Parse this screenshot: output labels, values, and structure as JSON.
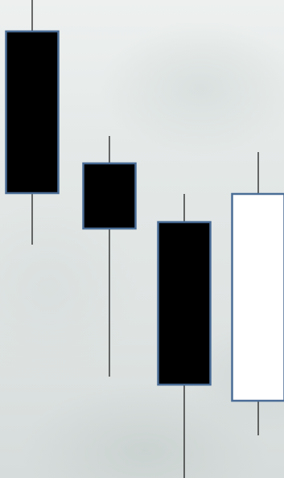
{
  "chart_data": {
    "type": "candlestick",
    "title": "",
    "xlabel": "",
    "ylabel": "",
    "grid": false,
    "ylim": [
      0,
      594
    ],
    "candles": [
      {
        "open": 555,
        "close": 354,
        "high": 594,
        "low": 290
      },
      {
        "open": 391,
        "close": 310,
        "high": 425,
        "low": 126
      },
      {
        "open": 318,
        "close": 116,
        "high": 353,
        "low": 0
      },
      {
        "open": 96,
        "close": 353,
        "high": 405,
        "low": 53
      }
    ],
    "colors": {
      "bearish_fill": "#000000",
      "bullish_fill": "#ffffff",
      "body_border": "#4a6d96",
      "wick": "#111111"
    }
  }
}
